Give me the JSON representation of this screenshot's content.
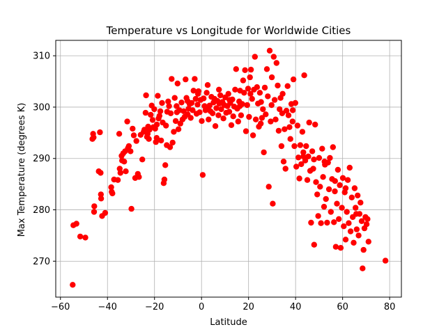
{
  "chart_data": {
    "type": "scatter",
    "title": "Temperature vs Longitude for Worldwide Cities",
    "xlabel": "Latitude",
    "ylabel": "Max Temperature (degrees K)",
    "xlim": [
      -62,
      85
    ],
    "ylim": [
      263,
      313
    ],
    "xticks": [
      -60,
      -40,
      -20,
      0,
      20,
      40,
      60,
      80
    ],
    "yticks": [
      270,
      280,
      290,
      300,
      310
    ],
    "grid": true,
    "marker_color": "#ff0000",
    "series": [
      {
        "points": [
          [
            -54.8,
            265.4
          ],
          [
            -54.5,
            277.0
          ],
          [
            -53.2,
            277.3
          ],
          [
            -51.6,
            274.8
          ],
          [
            -49.4,
            274.6
          ],
          [
            -46.4,
            293.8
          ],
          [
            -46.1,
            294.8
          ],
          [
            -45.9,
            294.1
          ],
          [
            -45.6,
            280.7
          ],
          [
            -45.7,
            279.6
          ],
          [
            -43.7,
            287.5
          ],
          [
            -43.2,
            295.1
          ],
          [
            -42.9,
            287.2
          ],
          [
            -42.8,
            283.0
          ],
          [
            -42.7,
            282.2
          ],
          [
            -42.3,
            278.8
          ],
          [
            -41.0,
            279.4
          ],
          [
            -38.4,
            284.4
          ],
          [
            -38.2,
            283.5
          ],
          [
            -37.9,
            283.2
          ],
          [
            -37.2,
            285.9
          ],
          [
            -35.6,
            285.8
          ],
          [
            -35.0,
            294.8
          ],
          [
            -34.8,
            288.0
          ],
          [
            -34.5,
            287.2
          ],
          [
            -34.0,
            290.5
          ],
          [
            -33.8,
            289.6
          ],
          [
            -33.3,
            291.0
          ],
          [
            -32.9,
            289.4
          ],
          [
            -32.5,
            291.4
          ],
          [
            -32.2,
            287.5
          ],
          [
            -31.6,
            297.2
          ],
          [
            -31.3,
            292.0
          ],
          [
            -30.9,
            292.4
          ],
          [
            -30.2,
            291.4
          ],
          [
            -29.8,
            280.2
          ],
          [
            -29.3,
            295.8
          ],
          [
            -28.8,
            294.5
          ],
          [
            -28.2,
            286.2
          ],
          [
            -27.7,
            293.4
          ],
          [
            -27.1,
            287.0
          ],
          [
            -26.6,
            286.4
          ],
          [
            -25.9,
            294.6
          ],
          [
            -25.2,
            289.8
          ],
          [
            -24.6,
            295.2
          ],
          [
            -24.3,
            295.6
          ],
          [
            -23.8,
            298.9
          ],
          [
            -23.6,
            302.3
          ],
          [
            -23.2,
            294.2
          ],
          [
            -22.7,
            296.2
          ],
          [
            -22.4,
            293.8
          ],
          [
            -22.1,
            295.6
          ],
          [
            -21.6,
            298.5
          ],
          [
            -21.2,
            300.3
          ],
          [
            -20.8,
            297.5
          ],
          [
            -20.5,
            296.1
          ],
          [
            -20.1,
            299.6
          ],
          [
            -19.7,
            295.8
          ],
          [
            -19.4,
            293.2
          ],
          [
            -19.0,
            296.6
          ],
          [
            -18.6,
            302.2
          ],
          [
            -18.3,
            297.8
          ],
          [
            -17.9,
            298.3
          ],
          [
            -17.5,
            299.2
          ],
          [
            -17.2,
            293.5
          ],
          [
            -16.8,
            300.8
          ],
          [
            -16.5,
            297.0
          ],
          [
            -16.1,
            285.2
          ],
          [
            -15.8,
            285.9
          ],
          [
            -15.4,
            288.7
          ],
          [
            -15.1,
            296.4
          ],
          [
            -14.6,
            299.1
          ],
          [
            -14.2,
            301.1
          ],
          [
            -13.8,
            300.2
          ],
          [
            -13.4,
            292.2
          ],
          [
            -13.1,
            298.8
          ],
          [
            -12.7,
            305.5
          ],
          [
            -12.3,
            293.1
          ],
          [
            -11.8,
            295.2
          ],
          [
            -11.4,
            301.8
          ],
          [
            -11.0,
            297.3
          ],
          [
            -10.6,
            300.2
          ],
          [
            -10.2,
            304.6
          ],
          [
            -9.8,
            295.7
          ],
          [
            -9.4,
            299.4
          ],
          [
            -9.0,
            296.8
          ],
          [
            -8.5,
            300.9
          ],
          [
            -8.1,
            297.6
          ],
          [
            -7.6,
            299.2
          ],
          [
            -7.2,
            298.1
          ],
          [
            -6.8,
            305.4
          ],
          [
            -6.4,
            301.8
          ],
          [
            -5.9,
            298.6
          ],
          [
            -5.5,
            299.7
          ],
          [
            -5.1,
            300.6
          ],
          [
            -4.6,
            297.9
          ],
          [
            -4.2,
            300.8
          ],
          [
            -3.8,
            299.4
          ],
          [
            -3.4,
            303.2
          ],
          [
            -2.9,
            305.5
          ],
          [
            -2.5,
            301.6
          ],
          [
            -2.1,
            298.7
          ],
          [
            -1.7,
            300.5
          ],
          [
            -1.3,
            303.1
          ],
          [
            -0.8,
            299.0
          ],
          [
            -0.4,
            301.4
          ],
          [
            0.1,
            297.3
          ],
          [
            0.5,
            286.8
          ],
          [
            0.9,
            301.7
          ],
          [
            1.3,
            300.2
          ],
          [
            1.7,
            299.4
          ],
          [
            2.2,
            302.8
          ],
          [
            2.6,
            304.3
          ],
          [
            3.0,
            297.6
          ],
          [
            3.4,
            300.3
          ],
          [
            3.8,
            299.2
          ],
          [
            4.2,
            302.0
          ],
          [
            4.7,
            298.8
          ],
          [
            5.1,
            300.9
          ],
          [
            5.5,
            301.6
          ],
          [
            5.9,
            296.3
          ],
          [
            6.3,
            299.8
          ],
          [
            6.8,
            301.2
          ],
          [
            7.2,
            298.4
          ],
          [
            7.6,
            300.7
          ],
          [
            8.0,
            302.3
          ],
          [
            8.4,
            299.6
          ],
          [
            8.9,
            301.0
          ],
          [
            9.3,
            297.8
          ],
          [
            9.7,
            300.4
          ],
          [
            10.1,
            301.9
          ],
          [
            10.5,
            298.9
          ],
          [
            11.0,
            300.2
          ],
          [
            11.4,
            302.6
          ],
          [
            11.8,
            299.1
          ],
          [
            12.2,
            300.8
          ],
          [
            12.7,
            296.5
          ],
          [
            13.1,
            301.5
          ],
          [
            13.5,
            298.2
          ],
          [
            13.9,
            300.1
          ],
          [
            14.3,
            303.4
          ],
          [
            14.7,
            307.4
          ],
          [
            15.2,
            299.7
          ],
          [
            15.6,
            297.2
          ],
          [
            16.0,
            301.1
          ],
          [
            16.4,
            303.2
          ],
          [
            16.8,
            298.4
          ],
          [
            17.3,
            300.6
          ],
          [
            17.7,
            305.2
          ],
          [
            18.1,
            302.8
          ],
          [
            18.5,
            307.2
          ],
          [
            18.9,
            295.3
          ],
          [
            19.4,
            300.4
          ],
          [
            19.8,
            303.6
          ],
          [
            20.2,
            298.1
          ],
          [
            20.6,
            305.8
          ],
          [
            21.0,
            307.3
          ],
          [
            21.5,
            301.6
          ],
          [
            21.9,
            294.5
          ],
          [
            22.3,
            303.4
          ],
          [
            22.7,
            309.8
          ],
          [
            23.1,
            297.6
          ],
          [
            23.6,
            303.9
          ],
          [
            24.0,
            300.7
          ],
          [
            24.4,
            296.2
          ],
          [
            24.8,
            302.8
          ],
          [
            25.2,
            296.8
          ],
          [
            25.7,
            297.9
          ],
          [
            26.1,
            299.6
          ],
          [
            26.5,
            291.2
          ],
          [
            26.9,
            303.8
          ],
          [
            27.3,
            298.6
          ],
          [
            27.8,
            307.4
          ],
          [
            28.2,
            302.1
          ],
          [
            28.6,
            284.5
          ],
          [
            29.0,
            311.0
          ],
          [
            29.4,
            297.2
          ],
          [
            29.9,
            305.8
          ],
          [
            30.3,
            281.2
          ],
          [
            30.7,
            309.8
          ],
          [
            31.1,
            301.4
          ],
          [
            31.5,
            297.6
          ],
          [
            31.9,
            308.6
          ],
          [
            32.4,
            304.2
          ],
          [
            32.8,
            295.4
          ],
          [
            33.2,
            299.6
          ],
          [
            33.6,
            301.8
          ],
          [
            34.0,
            292.4
          ],
          [
            34.5,
            302.6
          ],
          [
            34.9,
            289.4
          ],
          [
            35.3,
            295.7
          ],
          [
            35.7,
            288.0
          ],
          [
            36.1,
            299.3
          ],
          [
            36.6,
            304.1
          ],
          [
            37.0,
            298.4
          ],
          [
            37.4,
            296.1
          ],
          [
            37.8,
            293.8
          ],
          [
            38.2,
            300.6
          ],
          [
            38.7,
            297.2
          ],
          [
            39.1,
            305.4
          ],
          [
            39.5,
            292.4
          ],
          [
            39.9,
            300.8
          ],
          [
            40.3,
            288.4
          ],
          [
            40.8,
            296.4
          ],
          [
            41.2,
            290.2
          ],
          [
            41.6,
            286.1
          ],
          [
            42.0,
            292.6
          ],
          [
            42.4,
            288.9
          ],
          [
            42.9,
            295.2
          ],
          [
            43.3,
            291.2
          ],
          [
            43.7,
            306.2
          ],
          [
            44.1,
            289.6
          ],
          [
            44.5,
            292.4
          ],
          [
            45.0,
            285.8
          ],
          [
            45.4,
            290.4
          ],
          [
            45.8,
            297.0
          ],
          [
            46.2,
            287.6
          ],
          [
            46.6,
            277.5
          ],
          [
            47.1,
            291.4
          ],
          [
            47.5,
            288.0
          ],
          [
            47.9,
            273.2
          ],
          [
            48.3,
            296.6
          ],
          [
            48.7,
            285.4
          ],
          [
            49.2,
            283.0
          ],
          [
            49.6,
            278.8
          ],
          [
            50.0,
            290.1
          ],
          [
            50.4,
            284.5
          ],
          [
            50.8,
            277.4
          ],
          [
            51.3,
            291.9
          ],
          [
            51.7,
            286.4
          ],
          [
            52.1,
            280.6
          ],
          [
            52.5,
            288.8
          ],
          [
            52.9,
            282.1
          ],
          [
            53.4,
            277.5
          ],
          [
            53.8,
            289.2
          ],
          [
            54.2,
            284.0
          ],
          [
            54.6,
            290.1
          ],
          [
            55.0,
            279.6
          ],
          [
            55.5,
            286.0
          ],
          [
            55.9,
            292.2
          ],
          [
            56.3,
            277.6
          ],
          [
            56.7,
            283.6
          ],
          [
            57.1,
            272.8
          ],
          [
            57.6,
            281.2
          ],
          [
            58.0,
            287.8
          ],
          [
            58.4,
            278.2
          ],
          [
            58.8,
            284.8
          ],
          [
            59.2,
            272.6
          ],
          [
            59.7,
            280.4
          ],
          [
            60.1,
            286.2
          ],
          [
            60.5,
            276.8
          ],
          [
            60.9,
            283.4
          ],
          [
            61.3,
            274.2
          ],
          [
            61.8,
            279.6
          ],
          [
            62.2,
            285.8
          ],
          [
            62.6,
            277.4
          ],
          [
            63.0,
            288.2
          ],
          [
            63.4,
            275.8
          ],
          [
            63.9,
            282.4
          ],
          [
            64.3,
            278.6
          ],
          [
            64.7,
            273.6
          ],
          [
            65.1,
            284.2
          ],
          [
            65.5,
            280.4
          ],
          [
            66.0,
            276.2
          ],
          [
            66.4,
            282.8
          ],
          [
            66.8,
            275.0
          ],
          [
            67.2,
            279.2
          ],
          [
            67.6,
            281.4
          ],
          [
            68.1,
            277.8
          ],
          [
            68.5,
            268.6
          ],
          [
            68.9,
            272.2
          ],
          [
            69.3,
            276.4
          ],
          [
            69.7,
            278.6
          ],
          [
            70.2,
            277.2
          ],
          [
            70.6,
            278.2
          ],
          [
            71.0,
            273.8
          ],
          [
            78.2,
            270.1
          ],
          [
            -22.9,
            294.8
          ],
          [
            -19.1,
            294.0
          ],
          [
            -14.8,
            292.6
          ],
          [
            -10.5,
            299.0
          ],
          [
            -6.0,
            301.2
          ],
          [
            -1.5,
            302.6
          ],
          [
            2.9,
            300.0
          ],
          [
            7.4,
            303.4
          ],
          [
            11.9,
            301.4
          ],
          [
            16.3,
            300.2
          ],
          [
            20.8,
            302.6
          ],
          [
            25.3,
            301.0
          ],
          [
            29.8,
            300.4
          ],
          [
            34.3,
            298.8
          ],
          [
            38.8,
            299.4
          ],
          [
            43.3,
            290.4
          ],
          [
            47.8,
            289.8
          ],
          [
            52.3,
            289.4
          ],
          [
            56.8,
            285.6
          ],
          [
            61.3,
            284.2
          ],
          [
            65.8,
            279.2
          ]
        ]
      }
    ]
  }
}
